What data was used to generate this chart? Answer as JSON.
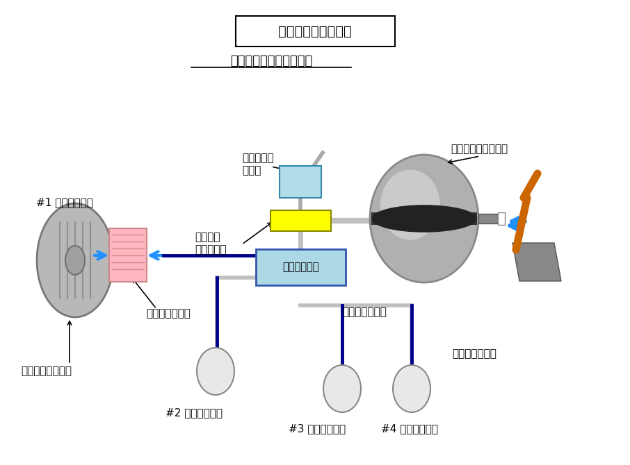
{
  "title_box": "ブレーキの基本構成",
  "subtitle": "ディスクブレーキの場合",
  "background_color": "#ffffff",
  "labels": {
    "brake1": "#1 ブレーキ装置",
    "brake2": "#2 ブレーキ装置",
    "brake3": "#3 ブレーキ装置",
    "brake4": "#4 ブレーキ装置",
    "pad": "ブレーキパッド",
    "rotor": "ディスクローター",
    "master_line1": "マスター",
    "master_line2": "シリンダー",
    "reservoir_line1": "リザーバー",
    "reservoir_line2": "タンク",
    "booster": "ブレーキブースター",
    "hydraulic": "油圧制御回路",
    "brake_line": "ブレーキライン",
    "brake_hose": "ブレーキホース"
  }
}
